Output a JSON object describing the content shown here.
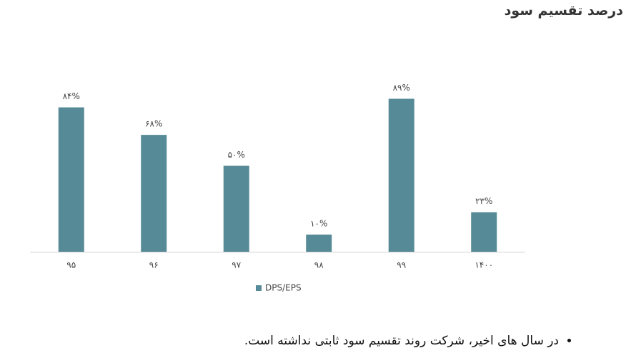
{
  "chart_data": {
    "type": "bar",
    "title": "درصد تقسیم سود",
    "categories": [
      "۹۵",
      "۹۶",
      "۹۷",
      "۹۸",
      "۹۹",
      "۱۴۰۰"
    ],
    "series": [
      {
        "name": "DPS/EPS",
        "color": "#568a96",
        "values": [
          84,
          68,
          50,
          10,
          89,
          23
        ],
        "value_labels": [
          "۸۴%",
          "۶۸%",
          "۵۰%",
          "۱۰%",
          "۸۹%",
          "۲۳%"
        ]
      }
    ],
    "ylim": [
      0,
      100
    ]
  },
  "note": "در سال های اخیر، شرکت روند تقسیم سود ثابتی نداشته است."
}
